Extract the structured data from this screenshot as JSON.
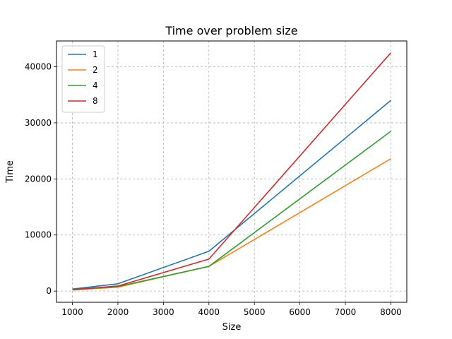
{
  "chart_data": {
    "type": "line",
    "title": "Time over problem size",
    "xlabel": "Size",
    "ylabel": "Time",
    "x": [
      1000,
      2000,
      4000,
      8000
    ],
    "xlim": [
      650,
      8350
    ],
    "ylim": [
      -2000,
      44600
    ],
    "xticks": [
      1000,
      2000,
      3000,
      4000,
      5000,
      6000,
      7000,
      8000
    ],
    "yticks": [
      0,
      10000,
      20000,
      30000,
      40000
    ],
    "grid": true,
    "legend_position": "top-left",
    "series": [
      {
        "name": "1",
        "color": "#1f77b4",
        "values": [
          350,
          1300,
          7100,
          34000
        ]
      },
      {
        "name": "2",
        "color": "#ff7f0e",
        "values": [
          200,
          700,
          4400,
          23600
        ]
      },
      {
        "name": "4",
        "color": "#2ca02c",
        "values": [
          250,
          800,
          4400,
          28500
        ]
      },
      {
        "name": "8",
        "color": "#d62728",
        "values": [
          250,
          900,
          5700,
          42500
        ]
      }
    ]
  }
}
